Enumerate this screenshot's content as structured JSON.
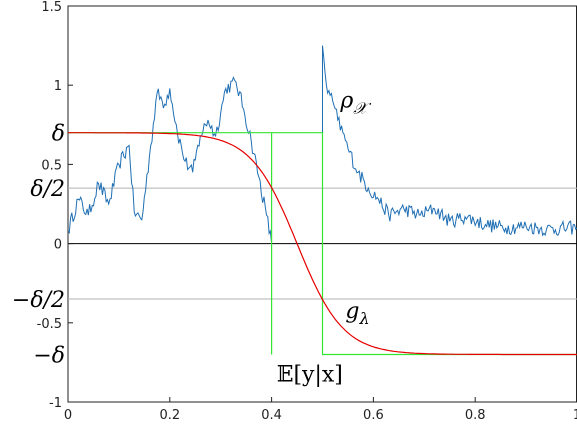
{
  "chart_data": {
    "type": "line",
    "xlim": [
      0,
      1
    ],
    "ylim": [
      -1,
      1.5
    ],
    "x_ticks": [
      "0",
      "0.2",
      "0.4",
      "0.6",
      "0.8",
      "1"
    ],
    "y_ticks": [
      "-1",
      "-0.5",
      "0",
      "0.5",
      "1",
      "1.5"
    ],
    "delta": 0.7,
    "y_symbol_labels": [
      {
        "text": "δ",
        "y": 0.7
      },
      {
        "text": "δ/2",
        "y": 0.35
      },
      {
        "text": "−δ/2",
        "y": -0.35
      },
      {
        "text": "−δ",
        "y": -0.7
      }
    ],
    "hlines": [
      {
        "y": 0.35,
        "color": "#b0b0b0"
      },
      {
        "y": -0.35,
        "color": "#b0b0b0"
      },
      {
        "y": 0,
        "color": "#000000"
      }
    ],
    "series": [
      {
        "name": "ρ𝒳",
        "color": "#1f6fb4",
        "kind": "noisy",
        "points": [
          [
            0.0,
            0.08
          ],
          [
            0.02,
            0.28
          ],
          [
            0.04,
            0.18
          ],
          [
            0.06,
            0.38
          ],
          [
            0.08,
            0.25
          ],
          [
            0.1,
            0.5
          ],
          [
            0.12,
            0.62
          ],
          [
            0.13,
            0.2
          ],
          [
            0.145,
            0.15
          ],
          [
            0.16,
            0.55
          ],
          [
            0.175,
            0.95
          ],
          [
            0.19,
            0.88
          ],
          [
            0.2,
            0.98
          ],
          [
            0.215,
            0.7
          ],
          [
            0.23,
            0.52
          ],
          [
            0.245,
            0.45
          ],
          [
            0.26,
            0.68
          ],
          [
            0.275,
            0.78
          ],
          [
            0.29,
            0.68
          ],
          [
            0.31,
            0.98
          ],
          [
            0.33,
            1.02
          ],
          [
            0.345,
            0.85
          ],
          [
            0.36,
            0.65
          ],
          [
            0.375,
            0.42
          ],
          [
            0.39,
            0.18
          ],
          [
            0.4,
            0.0
          ],
          null,
          [
            0.5,
            0.0
          ],
          [
            0.5,
            1.25
          ],
          [
            0.51,
            0.95
          ],
          [
            0.52,
            0.9
          ],
          [
            0.53,
            0.78
          ],
          [
            0.54,
            0.7
          ],
          [
            0.55,
            0.6
          ],
          [
            0.57,
            0.45
          ],
          [
            0.59,
            0.35
          ],
          [
            0.61,
            0.28
          ],
          [
            0.63,
            0.18
          ],
          [
            0.66,
            0.22
          ],
          [
            0.69,
            0.18
          ],
          [
            0.72,
            0.22
          ],
          [
            0.75,
            0.14
          ],
          [
            0.78,
            0.17
          ],
          [
            0.82,
            0.12
          ],
          [
            0.86,
            0.1
          ],
          [
            0.9,
            0.11
          ],
          [
            0.94,
            0.09
          ],
          [
            1.0,
            0.1
          ]
        ],
        "label": {
          "text": "ρ",
          "sub": "𝒳",
          "x": 0.535,
          "y": 0.86
        }
      },
      {
        "name": "𝔼[y|x]",
        "color": "#33e633",
        "kind": "line",
        "points": [
          [
            0.0,
            0.7
          ],
          [
            0.4,
            0.7
          ],
          [
            0.4,
            -0.7
          ],
          [
            0.4,
            0.7
          ],
          [
            0.4,
            0.7
          ],
          [
            0.5,
            0.7
          ],
          [
            0.5,
            -0.7
          ],
          [
            1.0,
            -0.7
          ]
        ],
        "label": {
          "text": "𝔼[y|x]",
          "x": 0.41,
          "y": -0.87
        }
      },
      {
        "name": "gλ",
        "color": "#e60000",
        "kind": "sigmoid",
        "center": 0.45,
        "scale": 0.045,
        "amplitude": 0.7,
        "label": {
          "text": "g",
          "sub": "λ",
          "x": 0.545,
          "y": -0.47
        }
      }
    ]
  }
}
